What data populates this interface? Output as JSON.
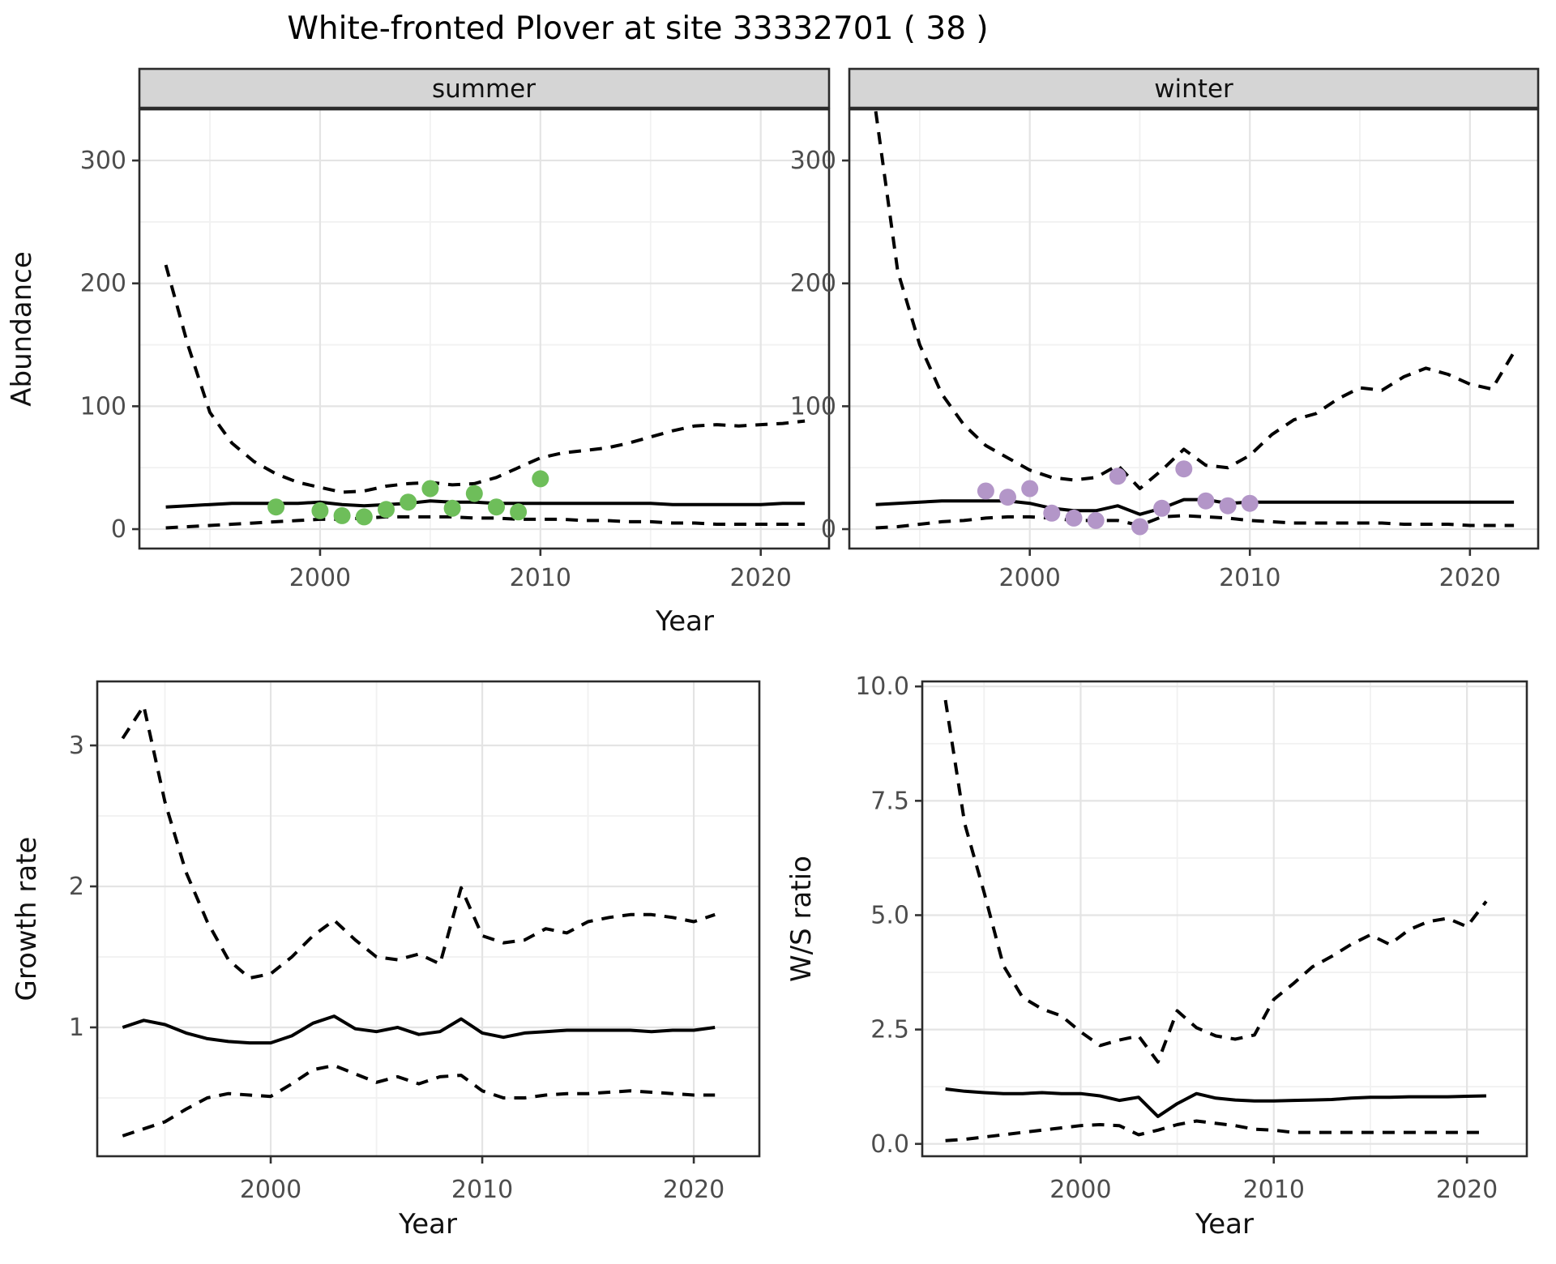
{
  "title": "White-fronted Plover at site 33332701 ( 38 )",
  "top_row": {
    "ylabel": "Abundance",
    "xlabel": "Year",
    "facets": [
      "summer",
      "winter"
    ]
  },
  "colors": {
    "strip_fill": "#d5d5d5",
    "panel_border": "#2b2b2b",
    "panel_bg": "#ffffff",
    "grid_major": "#e4e4e4",
    "grid_minor": "#f1f1f1",
    "line": "#000000",
    "tick": "#333333",
    "summer_point": "#6ebe5a",
    "winter_point": "#b396c8"
  },
  "chart_data": [
    {
      "type": "line",
      "panel": "summer",
      "facet_label": "summer",
      "ylabel": "Abundance",
      "xlabel": "Year",
      "xlim": [
        1991.8,
        2023.1
      ],
      "ylim": [
        -15.8,
        341.6
      ],
      "xticks": {
        "values": [
          2000,
          2010,
          2020
        ],
        "labels": [
          "2000",
          "2010",
          "2020"
        ]
      },
      "yticks": {
        "values": [
          0,
          100,
          200,
          300
        ],
        "labels": [
          "0",
          "100",
          "200",
          "300"
        ]
      },
      "xminor": [
        1995,
        2005,
        2015
      ],
      "yminor": [
        50,
        150,
        250
      ],
      "x": [
        1993,
        1994,
        1995,
        1996,
        1997,
        1998,
        1999,
        2000,
        2001,
        2002,
        2003,
        2004,
        2005,
        2006,
        2007,
        2008,
        2009,
        2010,
        2011,
        2012,
        2013,
        2014,
        2015,
        2016,
        2017,
        2018,
        2019,
        2020,
        2021,
        2022
      ],
      "series": [
        {
          "name": "median",
          "style": "solid",
          "values": [
            18,
            19,
            20,
            21,
            21,
            21,
            21,
            22,
            20,
            19,
            20,
            21,
            23,
            22,
            22,
            21,
            21,
            21,
            21,
            21,
            21,
            21,
            21,
            20,
            20,
            20,
            20,
            20,
            21,
            21
          ]
        },
        {
          "name": "upper_ci",
          "style": "dashed",
          "values": [
            215,
            150,
            95,
            70,
            55,
            45,
            38,
            34,
            30,
            31,
            35,
            37,
            38,
            36,
            37,
            42,
            50,
            58,
            62,
            64,
            66,
            70,
            75,
            80,
            84,
            85,
            84,
            85,
            86,
            88
          ]
        },
        {
          "name": "lower_ci",
          "style": "dashed",
          "values": [
            1,
            2,
            3,
            4,
            5,
            6,
            7,
            8,
            8,
            9,
            10,
            10,
            10,
            10,
            9,
            9,
            8,
            8,
            8,
            7,
            7,
            6,
            6,
            5,
            5,
            4,
            4,
            4,
            4,
            4
          ]
        }
      ],
      "points": {
        "name": "observed_counts",
        "color_key": "summer_point",
        "x": [
          1998,
          2000,
          2001,
          2002,
          2003,
          2004,
          2005,
          2006,
          2007,
          2008,
          2009,
          2010
        ],
        "y": [
          18,
          15,
          11,
          10,
          16,
          22,
          33,
          17,
          29,
          18,
          14,
          41
        ]
      }
    },
    {
      "type": "line",
      "panel": "winter",
      "facet_label": "winter",
      "ylabel": "Abundance",
      "xlabel": "Year",
      "xlim": [
        1991.8,
        2023.1
      ],
      "ylim": [
        -15.8,
        341.6
      ],
      "xticks": {
        "values": [
          2000,
          2010,
          2020
        ],
        "labels": [
          "2000",
          "2010",
          "2020"
        ]
      },
      "yticks": {
        "values": [
          0,
          100,
          200,
          300
        ],
        "labels": [
          "0",
          "100",
          "200",
          "300"
        ]
      },
      "xminor": [
        1995,
        2005,
        2015
      ],
      "yminor": [
        50,
        150,
        250
      ],
      "x": [
        1993,
        1994,
        1995,
        1996,
        1997,
        1998,
        1999,
        2000,
        2001,
        2002,
        2003,
        2004,
        2005,
        2006,
        2007,
        2008,
        2009,
        2010,
        2011,
        2012,
        2013,
        2014,
        2015,
        2016,
        2017,
        2018,
        2019,
        2020,
        2021,
        2022
      ],
      "series": [
        {
          "name": "median",
          "style": "solid",
          "values": [
            20,
            21,
            22,
            23,
            23,
            23,
            23,
            21,
            17,
            15,
            15,
            19,
            12,
            17,
            24,
            24,
            21,
            22,
            22,
            22,
            22,
            22,
            22,
            22,
            22,
            22,
            22,
            22,
            22,
            22
          ]
        },
        {
          "name": "upper_ci",
          "style": "dashed",
          "values": [
            340,
            210,
            150,
            110,
            85,
            68,
            58,
            48,
            42,
            40,
            42,
            52,
            33,
            48,
            65,
            52,
            50,
            60,
            77,
            89,
            94,
            106,
            115,
            113,
            124,
            131,
            126,
            118,
            114,
            144
          ]
        },
        {
          "name": "lower_ci",
          "style": "dashed",
          "values": [
            1,
            2,
            4,
            6,
            7,
            9,
            10,
            10,
            9,
            7,
            7,
            7,
            3,
            10,
            11,
            10,
            9,
            7,
            6,
            5,
            5,
            5,
            5,
            5,
            4,
            4,
            4,
            3,
            3,
            3
          ]
        }
      ],
      "points": {
        "name": "observed_counts",
        "color_key": "winter_point",
        "x": [
          1998,
          1999,
          2000,
          2001,
          2002,
          2003,
          2004,
          2005,
          2006,
          2007,
          2008,
          2009,
          2010
        ],
        "y": [
          31,
          26,
          33,
          13,
          9,
          7,
          43,
          2,
          17,
          49,
          23,
          19,
          21
        ]
      }
    },
    {
      "type": "line",
      "panel": "growth",
      "facet_label": "",
      "ylabel": "Growth rate",
      "xlabel": "Year",
      "xlim": [
        1991.8,
        2023.1
      ],
      "ylim": [
        0.086,
        3.454
      ],
      "xticks": {
        "values": [
          2000,
          2010,
          2020
        ],
        "labels": [
          "2000",
          "2010",
          "2020"
        ]
      },
      "yticks": {
        "values": [
          1,
          2,
          3
        ],
        "labels": [
          "1",
          "2",
          "3"
        ]
      },
      "xminor": [
        1995,
        2005,
        2015
      ],
      "yminor": [
        0.5,
        1.5,
        2.5
      ],
      "x": [
        1993,
        1994,
        1995,
        1996,
        1997,
        1998,
        1999,
        2000,
        2001,
        2002,
        2003,
        2004,
        2005,
        2006,
        2007,
        2008,
        2009,
        2010,
        2011,
        2012,
        2013,
        2014,
        2015,
        2016,
        2017,
        2018,
        2019,
        2020,
        2021
      ],
      "series": [
        {
          "name": "median",
          "style": "solid",
          "values": [
            1.0,
            1.05,
            1.02,
            0.96,
            0.92,
            0.9,
            0.89,
            0.89,
            0.94,
            1.03,
            1.08,
            0.99,
            0.97,
            1.0,
            0.95,
            0.97,
            1.06,
            0.96,
            0.93,
            0.96,
            0.97,
            0.98,
            0.98,
            0.98,
            0.98,
            0.97,
            0.98,
            0.98,
            1.0
          ]
        },
        {
          "name": "upper_ci",
          "style": "dashed",
          "values": [
            3.05,
            3.28,
            2.6,
            2.1,
            1.75,
            1.48,
            1.35,
            1.38,
            1.5,
            1.65,
            1.76,
            1.62,
            1.5,
            1.48,
            1.52,
            1.45,
            1.99,
            1.65,
            1.6,
            1.62,
            1.7,
            1.67,
            1.75,
            1.78,
            1.8,
            1.8,
            1.78,
            1.75,
            1.8
          ]
        },
        {
          "name": "lower_ci",
          "style": "dashed",
          "values": [
            0.23,
            0.28,
            0.33,
            0.42,
            0.5,
            0.53,
            0.52,
            0.51,
            0.6,
            0.7,
            0.73,
            0.67,
            0.61,
            0.65,
            0.6,
            0.65,
            0.66,
            0.55,
            0.5,
            0.5,
            0.52,
            0.53,
            0.53,
            0.54,
            0.55,
            0.54,
            0.53,
            0.52,
            0.52
          ]
        }
      ]
    },
    {
      "type": "line",
      "panel": "ws",
      "facet_label": "",
      "ylabel": "W/S ratio",
      "xlabel": "Year",
      "xlim": [
        1991.8,
        2023.1
      ],
      "ylim": [
        -0.27,
        10.11
      ],
      "xticks": {
        "values": [
          2000,
          2010,
          2020
        ],
        "labels": [
          "2000",
          "2010",
          "2020"
        ]
      },
      "yticks": {
        "values": [
          0,
          2.5,
          5,
          7.5,
          10
        ],
        "labels": [
          "0.0",
          "2.5",
          "5.0",
          "7.5",
          "10.0"
        ]
      },
      "xminor": [
        1995,
        2005,
        2015
      ],
      "yminor": [
        1.25,
        3.75,
        6.25,
        8.75
      ],
      "x": [
        1993,
        1994,
        1995,
        1996,
        1997,
        1998,
        1999,
        2000,
        2001,
        2002,
        2003,
        2004,
        2005,
        2006,
        2007,
        2008,
        2009,
        2010,
        2011,
        2012,
        2013,
        2014,
        2015,
        2016,
        2017,
        2018,
        2019,
        2020,
        2021
      ],
      "series": [
        {
          "name": "median",
          "style": "solid",
          "values": [
            1.2,
            1.15,
            1.12,
            1.1,
            1.1,
            1.12,
            1.1,
            1.1,
            1.05,
            0.95,
            1.02,
            0.6,
            0.88,
            1.1,
            1.0,
            0.96,
            0.94,
            0.94,
            0.95,
            0.96,
            0.97,
            1.0,
            1.02,
            1.02,
            1.03,
            1.03,
            1.03,
            1.04,
            1.05
          ]
        },
        {
          "name": "upper_ci",
          "style": "dashed",
          "values": [
            9.7,
            7.0,
            5.5,
            3.9,
            3.2,
            2.95,
            2.8,
            2.45,
            2.15,
            2.27,
            2.36,
            1.79,
            2.91,
            2.54,
            2.36,
            2.29,
            2.38,
            3.16,
            3.5,
            3.87,
            4.1,
            4.36,
            4.57,
            4.36,
            4.68,
            4.86,
            4.93,
            4.75,
            5.3
          ]
        },
        {
          "name": "lower_ci",
          "style": "dashed",
          "values": [
            0.07,
            0.1,
            0.15,
            0.2,
            0.25,
            0.3,
            0.35,
            0.4,
            0.42,
            0.4,
            0.2,
            0.3,
            0.42,
            0.5,
            0.45,
            0.4,
            0.32,
            0.3,
            0.25,
            0.25,
            0.25,
            0.25,
            0.25,
            0.25,
            0.25,
            0.25,
            0.25,
            0.25,
            0.25
          ]
        }
      ]
    }
  ]
}
